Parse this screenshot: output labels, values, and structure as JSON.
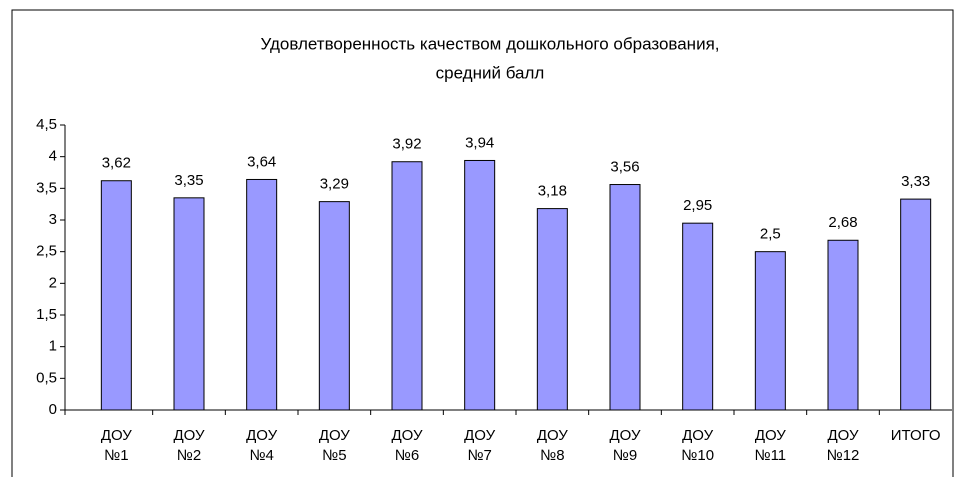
{
  "chart_data": {
    "type": "bar",
    "title": [
      "Удовлетворенность качеством дошкольного образования,",
      "средний балл"
    ],
    "categories": [
      "ДОУ №1",
      "ДОУ №2",
      "ДОУ №4",
      "ДОУ №5",
      "ДОУ №6",
      "ДОУ №7",
      "ДОУ №8",
      "ДОУ №9",
      "ДОУ №10",
      "ДОУ №11",
      "ДОУ №12",
      "ИТОГО"
    ],
    "values": [
      3.62,
      3.35,
      3.64,
      3.29,
      3.92,
      3.94,
      3.18,
      3.56,
      2.95,
      2.5,
      2.68,
      3.33
    ],
    "value_labels": [
      "3,62",
      "3,35",
      "3,64",
      "3,29",
      "3,92",
      "3,94",
      "3,18",
      "3,56",
      "2,95",
      "2,5",
      "2,68",
      "3,33"
    ],
    "color": "#9999ff",
    "ylim": [
      0,
      4.5
    ],
    "yticks": [
      0,
      {
        "value": 0.5,
        "label": "0,5"
      },
      1,
      {
        "value": 1.5,
        "label": "1,5"
      },
      2,
      {
        "value": 2.5,
        "label": "2,5"
      },
      3,
      {
        "value": 3.5,
        "label": "3,5"
      },
      4,
      {
        "value": 4.5,
        "label": "4,5"
      }
    ],
    "grid": false
  }
}
